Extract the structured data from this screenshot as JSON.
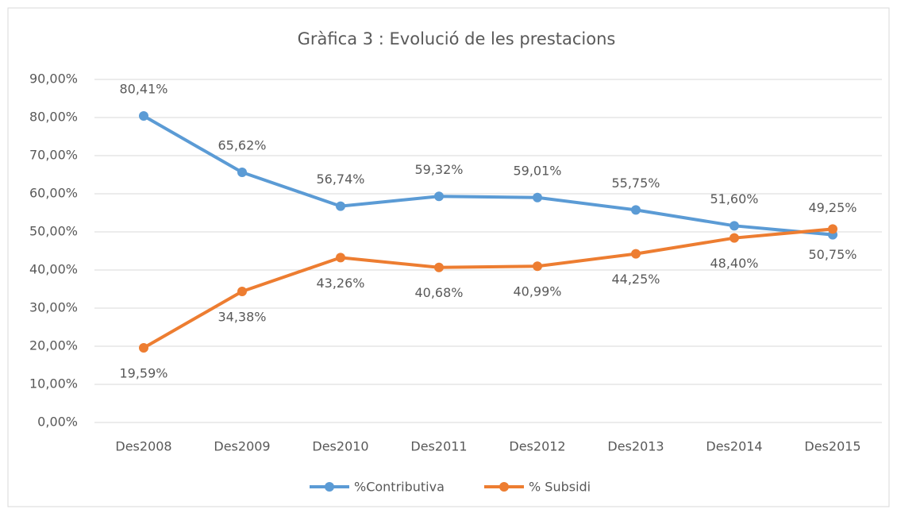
{
  "chart_data": {
    "type": "line",
    "title": "Gràfica 3 : Evolució de les prestacions",
    "categories": [
      "Des2008",
      "Des2009",
      "Des2010",
      "Des2011",
      "Des2012",
      "Des2013",
      "Des2014",
      "Des2015"
    ],
    "series": [
      {
        "name": "%Contributiva",
        "color": "#5b9bd5",
        "values": [
          80.41,
          65.62,
          56.74,
          59.32,
          59.01,
          55.75,
          51.6,
          49.25
        ],
        "value_labels": [
          "80,41%",
          "65,62%",
          "56,74%",
          "59,32%",
          "59,01%",
          "55,75%",
          "51,60%",
          "49,25%"
        ]
      },
      {
        "name": "% Subsidi",
        "color": "#ed7d31",
        "values": [
          19.59,
          34.38,
          43.26,
          40.68,
          40.99,
          44.25,
          48.4,
          50.75
        ],
        "value_labels": [
          "19,59%",
          "34,38%",
          "43,26%",
          "40,68%",
          "40,99%",
          "44,25%",
          "48,40%",
          "50,75%"
        ]
      }
    ],
    "ylim": [
      0,
      90
    ],
    "yticks": [
      {
        "value": 0,
        "label": "0,00%"
      },
      {
        "value": 10,
        "label": "10,00%"
      },
      {
        "value": 20,
        "label": "20,00%"
      },
      {
        "value": 30,
        "label": "30,00%"
      },
      {
        "value": 40,
        "label": "40,00%"
      },
      {
        "value": 50,
        "label": "50,00%"
      },
      {
        "value": 60,
        "label": "60,00%"
      },
      {
        "value": 70,
        "label": "70,00%"
      },
      {
        "value": 80,
        "label": "80,00%"
      },
      {
        "value": 90,
        "label": "90,00%"
      }
    ],
    "grid": true,
    "legend": "bottom"
  }
}
